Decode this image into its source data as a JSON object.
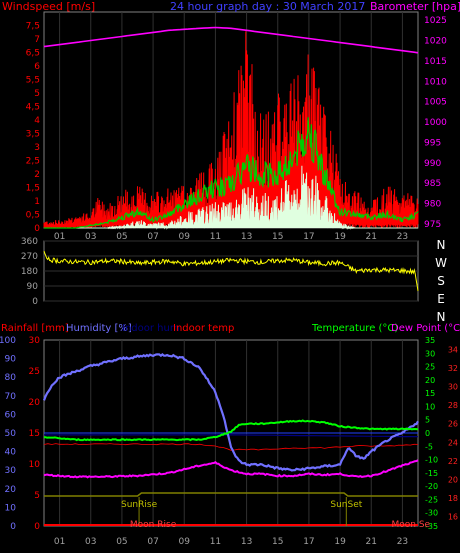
{
  "colors": {
    "windspeed": "#ff0000",
    "windspeed_avg": "#00cc00",
    "windspeed_low": "#e0ffe0",
    "barometer": "#ff00ff",
    "wind_dir": "#ffff00",
    "rainfall": "#ff0000",
    "humidity": "#7070ff",
    "indoor_hum": "#000080",
    "indoor_temp": "#ff0000",
    "temperature": "#00ff00",
    "dew_point": "#ff00ff",
    "sun": "#808000",
    "moon": "#ff4040",
    "axis": "#808080"
  },
  "chart_data": [
    {
      "type": "line",
      "title": "24 hour graph day : 30 March 2017",
      "xlabel": "",
      "x_ticks": [
        "01",
        "03",
        "05",
        "07",
        "09",
        "11",
        "13",
        "15",
        "17",
        "19",
        "21",
        "23"
      ],
      "left_axis": {
        "label": "Windspeed [m/s]",
        "range": [
          0,
          8
        ],
        "ticks": [
          "0",
          "0,5",
          "1",
          "1,5",
          "2",
          "2,5",
          "3",
          "3,5",
          "4",
          "4,5",
          "5",
          "5,5",
          "6",
          "6,5",
          "7",
          "7,5"
        ]
      },
      "right_axis": {
        "label": "Barometer [hpa]",
        "range": [
          974,
          1027
        ],
        "ticks": [
          "975",
          "980",
          "985",
          "990",
          "995",
          "1000",
          "1005",
          "1010",
          "1015",
          "1020",
          "1025"
        ]
      },
      "series": [
        {
          "name": "",
          "axis": "right",
          "x": [
            0,
            2,
            4,
            6,
            8,
            10,
            11,
            12,
            13,
            14,
            16,
            18,
            20,
            22,
            24
          ],
          "values": [
            1018.5,
            1019.5,
            1020.5,
            1021.5,
            1022.5,
            1023,
            1023.2,
            1023,
            1022.5,
            1022,
            1021,
            1020,
            1019,
            1018,
            1017
          ]
        },
        {
          "name": "",
          "axis": "left",
          "x": [
            0,
            1,
            2,
            3,
            3.5,
            4,
            5,
            6,
            7,
            8,
            9,
            10,
            11,
            12,
            13,
            13.5,
            14,
            15,
            16,
            17,
            18,
            19,
            20,
            21,
            22,
            23,
            24
          ],
          "values": [
            0.3,
            0.3,
            0.5,
            0.6,
            1.2,
            0.9,
            1.4,
            1.6,
            1.3,
            1.5,
            1.6,
            2.2,
            2.5,
            4.5,
            7.6,
            5.5,
            4.0,
            5.0,
            5.5,
            6.5,
            5.0,
            2.0,
            1.4,
            1.1,
            1.6,
            1.3,
            1.4
          ]
        },
        {
          "name": "",
          "axis": "left",
          "x": [
            0,
            2,
            4,
            5,
            6,
            7,
            8,
            9,
            10,
            11,
            12,
            13,
            14,
            15,
            16,
            17,
            18,
            19,
            20,
            21,
            22,
            23,
            24
          ],
          "values": [
            0,
            0,
            0.2,
            0.4,
            0.6,
            0.3,
            0.5,
            0.9,
            1.2,
            1.5,
            1.6,
            2.3,
            2.0,
            2.0,
            2.6,
            3.6,
            2.0,
            0.6,
            0.5,
            0.4,
            0.5,
            0.3,
            0.5
          ]
        },
        {
          "name": "",
          "axis": "left",
          "x": [
            0,
            4,
            5,
            6,
            7,
            8,
            9,
            10,
            11,
            12,
            13,
            14,
            15,
            16,
            17,
            18,
            19,
            20,
            24
          ],
          "values": [
            0,
            0,
            0.1,
            0.3,
            0.2,
            0.2,
            0.5,
            0.7,
            0.9,
            1.0,
            1.5,
            1.2,
            1.3,
            1.9,
            2.3,
            1.2,
            0.2,
            0,
            0
          ]
        }
      ]
    },
    {
      "type": "line",
      "title": "",
      "right_axis_labels": [
        "N",
        "W",
        "S",
        "E",
        "N"
      ],
      "left_axis": {
        "range": [
          0,
          360
        ],
        "ticks": [
          "0",
          "90",
          "180",
          "270",
          "360"
        ]
      },
      "x_ticks": [],
      "series": [
        {
          "name": "",
          "x": [
            0,
            0.2,
            1,
            2,
            3,
            4,
            5,
            6,
            7,
            8,
            9,
            10,
            11,
            12,
            13,
            14,
            15,
            16,
            17,
            18,
            19,
            20,
            21,
            22,
            23,
            23.8,
            24
          ],
          "values": [
            300,
            250,
            240,
            235,
            232,
            240,
            238,
            225,
            232,
            240,
            222,
            228,
            235,
            245,
            238,
            232,
            242,
            245,
            230,
            225,
            230,
            180,
            188,
            185,
            182,
            175,
            60
          ]
        }
      ]
    },
    {
      "type": "line",
      "left_axis_labels": [
        "Rainfall [mm]",
        "Humidity [%]",
        "Indoor hum",
        "Indoor temp"
      ],
      "right_axis_labels": [
        "Temperature (°C)",
        "Dew Point (°C)"
      ],
      "humidity_ticks": [
        "0",
        "10",
        "20",
        "30",
        "40",
        "50",
        "60",
        "70",
        "80",
        "90",
        "100"
      ],
      "rain_ticks": [
        "0",
        "5",
        "10",
        "15",
        "20",
        "25",
        "30"
      ],
      "temp_ticks": [
        "-35",
        "-30",
        "-25",
        "-20",
        "-15",
        "-10",
        "-5",
        "0",
        "5",
        "10",
        "15",
        "20",
        "25",
        "30",
        "35"
      ],
      "dew_ticks": [
        "16",
        "18",
        "20",
        "22",
        "24",
        "26",
        "28",
        "30",
        "32",
        "34"
      ],
      "x_ticks": [
        "01",
        "03",
        "05",
        "07",
        "09",
        "11",
        "13",
        "15",
        "17",
        "19",
        "21",
        "23"
      ],
      "humidity_range": [
        0,
        100
      ],
      "series": [
        {
          "name": "",
          "x": [
            0,
            0.5,
            1,
            2,
            3,
            4,
            5,
            6,
            7,
            8,
            9,
            10,
            11,
            11.5,
            12,
            12.5,
            13,
            14,
            15,
            16,
            17,
            18,
            19,
            19.5,
            20,
            20.5,
            21,
            22,
            23,
            24
          ],
          "values": [
            68,
            76,
            80,
            83,
            86,
            88,
            90,
            91,
            92,
            92,
            90,
            85,
            72,
            60,
            42,
            35,
            33,
            33,
            31,
            30,
            31,
            32,
            33,
            42,
            38,
            36,
            40,
            46,
            50,
            56
          ]
        },
        {
          "name": "",
          "x": [
            0,
            12,
            24
          ],
          "values": [
            49,
            49,
            48
          ]
        },
        {
          "name": "",
          "x": [
            0,
            2,
            4,
            6,
            8,
            10,
            11,
            12,
            13,
            14,
            15,
            16,
            17,
            18,
            19,
            20,
            21,
            22,
            23,
            24
          ],
          "values": [
            37,
            36.5,
            37,
            36,
            35,
            36,
            37,
            39,
            38,
            38,
            37,
            38,
            37,
            37,
            38,
            37,
            36,
            37,
            39,
            40
          ]
        }
      ],
      "temperature": {
        "x": [
          0,
          2,
          4,
          6,
          8,
          10,
          11,
          12,
          12.5,
          13,
          14,
          15,
          16,
          17,
          18,
          19,
          20,
          21,
          22,
          23,
          24
        ],
        "values": [
          -1.5,
          -2.5,
          -2.5,
          -2.5,
          -2.5,
          -2.5,
          -1.5,
          0.5,
          3.0,
          3.5,
          3.5,
          4.0,
          4.5,
          4.5,
          4.0,
          2.5,
          2.0,
          1.5,
          1.5,
          1.5,
          1.5
        ]
      },
      "dew_point": {
        "x": [
          0,
          2,
          4,
          6,
          8,
          10,
          11,
          12,
          13,
          14,
          15,
          16,
          17,
          18,
          19,
          20,
          21,
          22,
          23,
          24
        ],
        "values": [
          20.5,
          20.3,
          20.3,
          20.4,
          20.7,
          21.5,
          21.8,
          21.0,
          20.6,
          20.6,
          20.4,
          20.4,
          20.6,
          20.5,
          20.6,
          20.3,
          20.4,
          20.9,
          21.5,
          22.0
        ]
      },
      "indoor_temp": {
        "x": [
          0,
          4,
          6,
          8,
          10,
          11,
          12,
          14,
          16,
          18,
          20,
          22,
          24
        ],
        "values": [
          44,
          44,
          44,
          44,
          44,
          43,
          41,
          41,
          42,
          42,
          43,
          43,
          44
        ]
      },
      "annotations": {
        "sunrise_label": "SunRise",
        "sunset_label": "SunSet",
        "moonrise_label": "Moon Rise",
        "moonset_label": "Moon Se",
        "sunrise_x": 6.1,
        "sunset_x": 19.4,
        "moonrise_x": 7.0,
        "moonset_x": 22.3
      }
    }
  ],
  "labels": {
    "windspeed": "Windspeed [m/s]",
    "title": "24 hour graph day : 30 March 2017",
    "barometer": "Barometer [hpa]",
    "rainfall": "Rainfall [mm]",
    "humidity": "Humidity [%]",
    "indoor_hum": "Indoor hum",
    "indoor_temp": "Indoor temp",
    "temperature": "Temperature (°C)",
    "dew_point": "Dew Point (°C)"
  }
}
